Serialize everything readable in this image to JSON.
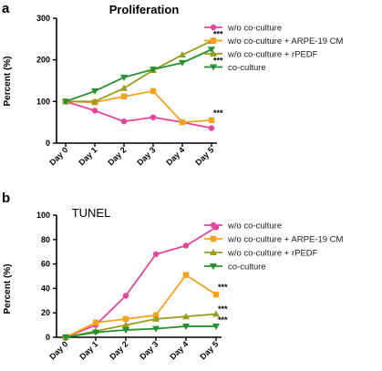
{
  "chart_data": [
    {
      "panel": "a",
      "type": "line",
      "title": "Proliferation",
      "xlabel": "",
      "ylabel": "Percent (%)",
      "ylim": [
        0,
        300
      ],
      "yticks": [
        0,
        100,
        200,
        300
      ],
      "categories": [
        "Day 0",
        "Day 1",
        "Day 2",
        "Day 3",
        "Day 4",
        "Day 5"
      ],
      "legend_position": "top-right",
      "series": [
        {
          "name": "w/o co-culture",
          "color": "#e8459c",
          "marker": "circle",
          "values": [
            100,
            78,
            52,
            62,
            50,
            36
          ]
        },
        {
          "name": "w/o co-culture + ARPE-19 CM",
          "color": "#f7a21b",
          "marker": "square",
          "values": [
            100,
            98,
            112,
            125,
            50,
            55
          ]
        },
        {
          "name": "w/o co-culture + rPEDF",
          "color": "#9a9b1f",
          "marker": "triangle-up",
          "values": [
            100,
            100,
            132,
            175,
            212,
            245
          ]
        },
        {
          "name": "co-culture",
          "color": "#23922e",
          "marker": "triangle-down",
          "values": [
            100,
            125,
            158,
            177,
            193,
            225
          ]
        }
      ],
      "annotations": [
        {
          "text": "***",
          "x": "Day 5",
          "y": 262
        },
        {
          "text": "***",
          "x": "Day 5",
          "y": 198
        },
        {
          "text": "***",
          "x": "Day 5",
          "y": 72
        }
      ]
    },
    {
      "panel": "b",
      "type": "line",
      "title": "TUNEL",
      "xlabel": "",
      "ylabel": "Percent (%)",
      "ylim": [
        0,
        100
      ],
      "yticks": [
        0,
        20,
        40,
        60,
        80,
        100
      ],
      "categories": [
        "Day 0",
        "Day 1",
        "Day 2",
        "Day 3",
        "Day 4",
        "Day 5"
      ],
      "legend_position": "right",
      "series": [
        {
          "name": "w/o co-culture",
          "color": "#e8459c",
          "marker": "circle",
          "values": [
            0,
            10,
            34,
            68,
            75,
            90
          ]
        },
        {
          "name": "w/o co-culture + ARPE-19 CM",
          "color": "#f7a21b",
          "marker": "square",
          "values": [
            0,
            12,
            15,
            18,
            51,
            35
          ]
        },
        {
          "name": "w/o co-culture + rPEDF",
          "color": "#9a9b1f",
          "marker": "triangle-up",
          "values": [
            0,
            5,
            10,
            15,
            17,
            19
          ]
        },
        {
          "name": "co-culture",
          "color": "#23922e",
          "marker": "triangle-down",
          "values": [
            0,
            4,
            6,
            7,
            9,
            9
          ]
        }
      ],
      "annotations": [
        {
          "text": "***",
          "x": "Day 5",
          "y": 41
        },
        {
          "text": "***",
          "x": "Day 5",
          "y": 23
        },
        {
          "text": "***",
          "x": "Day 5",
          "y": 14
        }
      ]
    }
  ],
  "panel_labels": [
    "a",
    "b"
  ]
}
